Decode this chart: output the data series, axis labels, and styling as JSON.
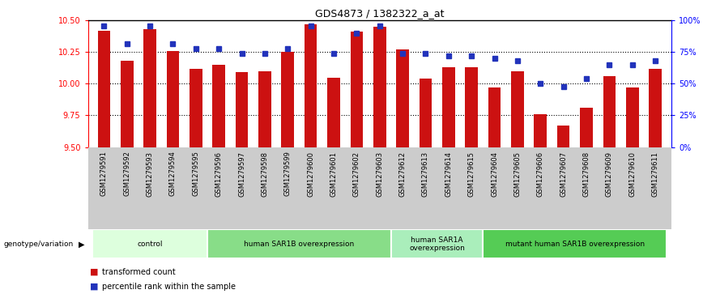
{
  "title": "GDS4873 / 1382322_a_at",
  "samples": [
    "GSM1279591",
    "GSM1279592",
    "GSM1279593",
    "GSM1279594",
    "GSM1279595",
    "GSM1279596",
    "GSM1279597",
    "GSM1279598",
    "GSM1279599",
    "GSM1279600",
    "GSM1279601",
    "GSM1279602",
    "GSM1279603",
    "GSM1279612",
    "GSM1279613",
    "GSM1279614",
    "GSM1279615",
    "GSM1279604",
    "GSM1279605",
    "GSM1279606",
    "GSM1279607",
    "GSM1279608",
    "GSM1279609",
    "GSM1279610",
    "GSM1279611"
  ],
  "bar_values": [
    10.42,
    10.18,
    10.43,
    10.26,
    10.12,
    10.15,
    10.09,
    10.1,
    10.25,
    10.47,
    10.05,
    10.41,
    10.45,
    10.27,
    10.04,
    10.13,
    10.13,
    9.97,
    10.1,
    9.76,
    9.67,
    9.81,
    10.06,
    9.97,
    10.12
  ],
  "percentile_values": [
    96,
    82,
    96,
    82,
    78,
    78,
    74,
    74,
    78,
    96,
    74,
    90,
    96,
    74,
    74,
    72,
    72,
    70,
    68,
    50,
    48,
    54,
    65,
    65,
    68
  ],
  "ylim_left": [
    9.5,
    10.5
  ],
  "ylim_right": [
    0,
    100
  ],
  "yticks_left": [
    9.5,
    9.75,
    10.0,
    10.25,
    10.5
  ],
  "yticks_right": [
    0,
    25,
    50,
    75,
    100
  ],
  "ytick_labels_right": [
    "0%",
    "25%",
    "50%",
    "75%",
    "100%"
  ],
  "bar_color": "#CC1111",
  "dot_color": "#2233BB",
  "groups": [
    {
      "label": "control",
      "start": 0,
      "end": 5,
      "color": "#ddffdd"
    },
    {
      "label": "human SAR1B overexpression",
      "start": 5,
      "end": 13,
      "color": "#88dd88"
    },
    {
      "label": "human SAR1A\noverexpression",
      "start": 13,
      "end": 17,
      "color": "#aaeebb"
    },
    {
      "label": "mutant human SAR1B overexpression",
      "start": 17,
      "end": 25,
      "color": "#55cc55"
    }
  ],
  "xlabel_left": "transformed count",
  "xlabel_right": "percentile rank within the sample",
  "genotype_label": "genotype/variation",
  "background_color": "#ffffff",
  "dotted_line_values": [
    9.75,
    10.0,
    10.25
  ],
  "xtick_bg": "#cccccc",
  "bar_width": 0.55
}
